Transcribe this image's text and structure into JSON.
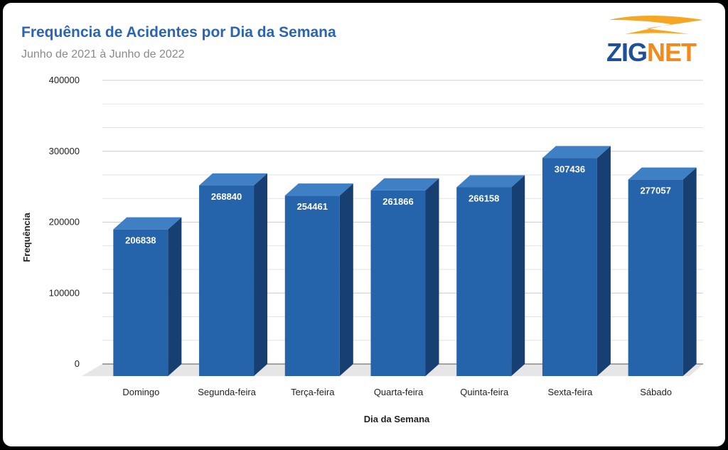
{
  "header": {
    "title": "Frequência de Acidentes por Dia da Semana",
    "subtitle": "Junho de 2021 à Junho de 2022"
  },
  "logo": {
    "text_prefix": "ZIG",
    "text_suffix": "NET",
    "colors": {
      "blue": "#1f4f9a",
      "orange": "#f28a1c"
    }
  },
  "colors": {
    "bar_front": "#2563aa",
    "bar_top": "#3f7fc4",
    "bar_side": "#173f72",
    "title": "#2a64b4"
  },
  "chart_data": {
    "type": "bar",
    "title": "Frequência de Acidentes por Dia da Semana",
    "subtitle": "Junho de 2021 à Junho de 2022",
    "xlabel": "Dia da Semana",
    "ylabel": "Frequência",
    "categories": [
      "Domingo",
      "Segunda-feira",
      "Terça-feira",
      "Quarta-feira",
      "Quinta-feira",
      "Sexta-feira",
      "Sábado"
    ],
    "values": [
      206838,
      268840,
      254461,
      261866,
      266158,
      307436,
      277057
    ],
    "value_labels": [
      "206838",
      "268840",
      "254461",
      "261866",
      "266158",
      "307436",
      "277057"
    ],
    "ylim": [
      0,
      400000
    ],
    "yticks": [
      0,
      100000,
      200000,
      300000,
      400000
    ],
    "ytick_labels": [
      "0",
      "100000",
      "200000",
      "300000",
      "400000"
    ],
    "grid": true,
    "style": "3d"
  }
}
